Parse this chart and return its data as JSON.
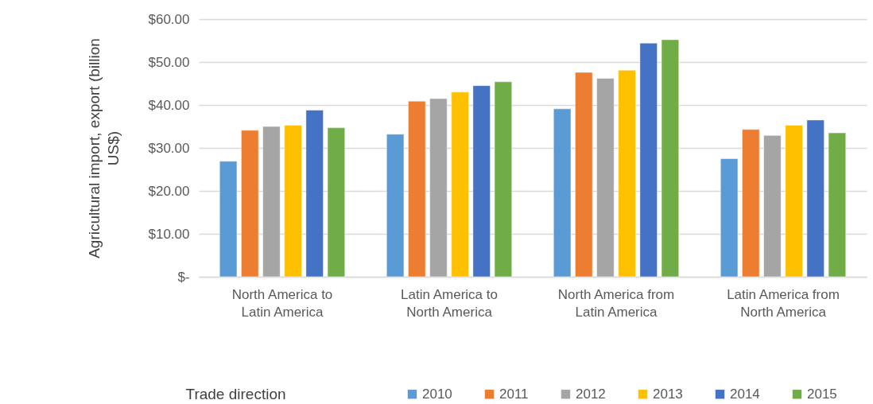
{
  "chart_data": {
    "type": "bar",
    "xlabel": "Trade direction",
    "ylabel": "Agricultural import, export (billion US$)",
    "categories": [
      "North America to Latin America",
      "Latin America to North America",
      "North America from Latin America",
      "Latin America from North America"
    ],
    "series": [
      {
        "name": "2010",
        "color": "#5b9bd5",
        "values": [
          26.9,
          33.2,
          39.1,
          27.5
        ]
      },
      {
        "name": "2011",
        "color": "#ed7d31",
        "values": [
          34.1,
          40.9,
          47.6,
          34.3
        ]
      },
      {
        "name": "2012",
        "color": "#a5a5a5",
        "values": [
          35.0,
          41.5,
          46.2,
          32.9
        ]
      },
      {
        "name": "2013",
        "color": "#ffc000",
        "values": [
          35.3,
          43.0,
          48.1,
          35.3
        ]
      },
      {
        "name": "2014",
        "color": "#4472c4",
        "values": [
          38.8,
          44.5,
          54.4,
          36.5
        ]
      },
      {
        "name": "2015",
        "color": "#70ad47",
        "values": [
          34.7,
          45.4,
          55.2,
          33.5
        ]
      }
    ],
    "ylim": [
      0,
      60
    ],
    "yticks": [
      {
        "value": 0,
        "label": "$-"
      },
      {
        "value": 10,
        "label": "$10.00"
      },
      {
        "value": 20,
        "label": "$20.00"
      },
      {
        "value": 30,
        "label": "$30.00"
      },
      {
        "value": 40,
        "label": "$40.00"
      },
      {
        "value": 50,
        "label": "$50.00"
      },
      {
        "value": 60,
        "label": "$60.00"
      }
    ],
    "grid": "y",
    "legend": "bottom right"
  }
}
